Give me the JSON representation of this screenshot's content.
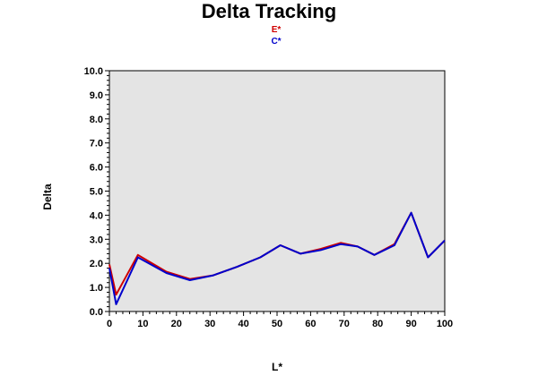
{
  "chart_data": {
    "type": "line",
    "title": "Delta Tracking",
    "xlabel": "L*",
    "ylabel": "Delta",
    "xlim": [
      0,
      100
    ],
    "ylim": [
      0,
      10
    ],
    "x_ticks": [
      "0",
      "10",
      "20",
      "30",
      "40",
      "50",
      "60",
      "70",
      "80",
      "90",
      "100"
    ],
    "y_ticks": [
      "0.0",
      "1.0",
      "2.0",
      "3.0",
      "4.0",
      "5.0",
      "6.0",
      "7.0",
      "8.0",
      "9.0",
      "10.0"
    ],
    "grid": false,
    "legend_position": "top-center",
    "series": [
      {
        "name": "E*",
        "color": "#d00000",
        "points": [
          [
            0,
            1.95
          ],
          [
            2,
            0.7
          ],
          [
            8.5,
            2.35
          ],
          [
            17,
            1.65
          ],
          [
            24,
            1.35
          ],
          [
            31,
            1.5
          ],
          [
            38,
            1.85
          ],
          [
            45,
            2.25
          ],
          [
            51,
            2.75
          ],
          [
            57,
            2.4
          ],
          [
            63,
            2.6
          ],
          [
            69,
            2.85
          ],
          [
            74,
            2.7
          ],
          [
            79,
            2.35
          ],
          [
            85,
            2.8
          ],
          [
            90,
            4.1
          ],
          [
            95,
            2.25
          ],
          [
            100,
            2.95
          ]
        ]
      },
      {
        "name": "C*",
        "color": "#0000cc",
        "points": [
          [
            0,
            1.8
          ],
          [
            2,
            0.3
          ],
          [
            8.5,
            2.25
          ],
          [
            17,
            1.6
          ],
          [
            24,
            1.3
          ],
          [
            31,
            1.5
          ],
          [
            38,
            1.85
          ],
          [
            45,
            2.25
          ],
          [
            51,
            2.75
          ],
          [
            57,
            2.4
          ],
          [
            63,
            2.55
          ],
          [
            69,
            2.8
          ],
          [
            74,
            2.7
          ],
          [
            79,
            2.35
          ],
          [
            85,
            2.75
          ],
          [
            90,
            4.1
          ],
          [
            95,
            2.25
          ],
          [
            100,
            2.95
          ]
        ]
      }
    ]
  }
}
